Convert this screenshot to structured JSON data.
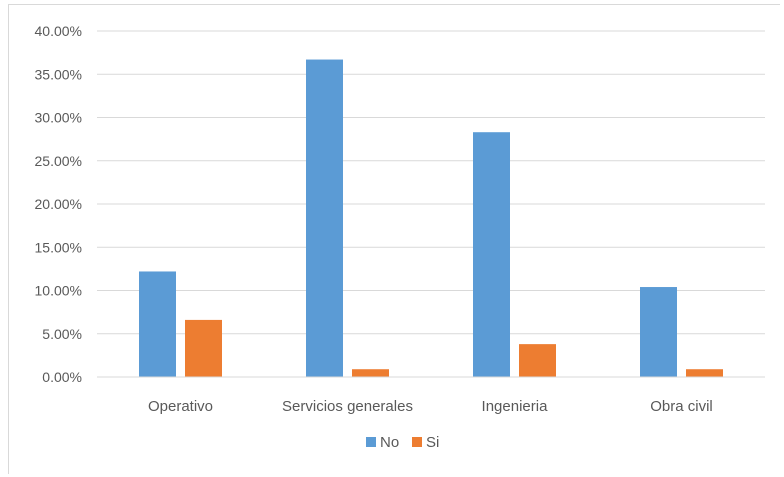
{
  "chart_data": {
    "type": "bar",
    "categories": [
      "Operativo",
      "Servicios generales",
      "Ingenieria",
      "Obra civil"
    ],
    "series": [
      {
        "name": "No",
        "color": "#5b9bd5",
        "values": [
          12.2,
          36.7,
          28.3,
          10.4
        ]
      },
      {
        "name": "Si",
        "color": "#ed7d31",
        "values": [
          6.6,
          0.9,
          3.8,
          0.9
        ]
      }
    ],
    "ylim": [
      0,
      40
    ],
    "yticks": [
      "0.00%",
      "5.00%",
      "10.00%",
      "15.00%",
      "20.00%",
      "25.00%",
      "30.00%",
      "35.00%",
      "40.00%"
    ],
    "grid": true,
    "legend_position": "bottom"
  }
}
